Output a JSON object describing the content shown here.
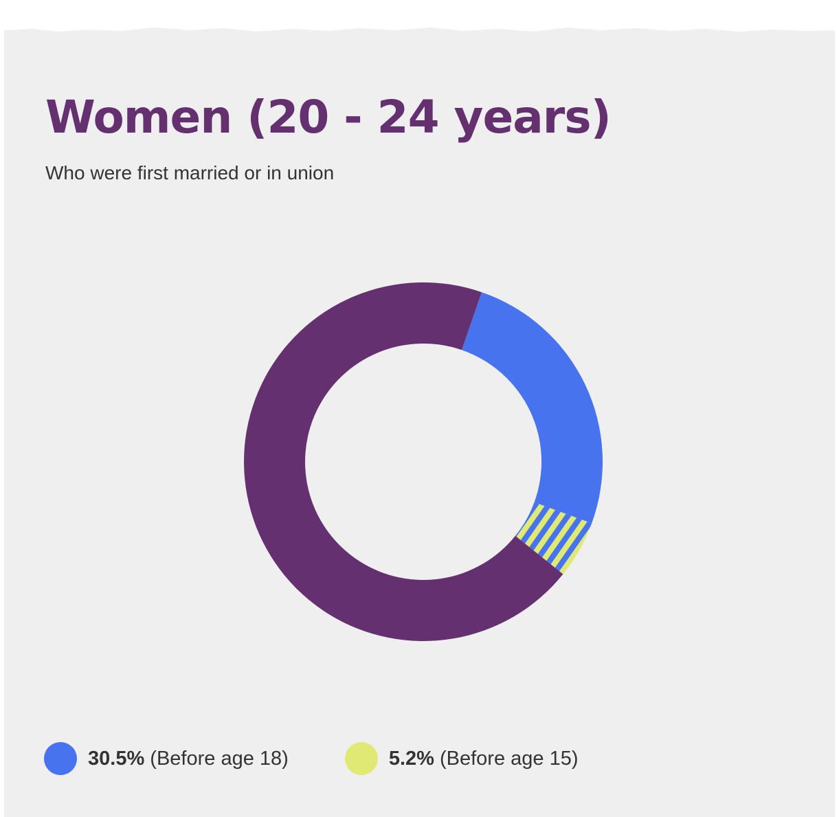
{
  "header": {
    "title": "Women (20 - 24 years)",
    "subtitle": "Who were first married or in union"
  },
  "colors": {
    "background": "#f0eff0",
    "remainder": "#64306f",
    "before_18": "#4773ee",
    "before_15": "#e0e973"
  },
  "chart_data": {
    "type": "pie",
    "title": "Women (20 - 24 years)",
    "subtitle": "Who were first married or in union",
    "donut": true,
    "slices": [
      {
        "label": "(Before age 18)",
        "value": 30.5,
        "value_label": "30.5%",
        "color": "#4773ee"
      },
      {
        "label": "(Before age 15)",
        "value": 5.2,
        "value_label": "5.2%",
        "color": "#e0e973",
        "pattern": "striped over before_18"
      }
    ],
    "remainder_color": "#64306f",
    "legend_position": "bottom-left"
  },
  "legend": [
    {
      "value": "30.5%",
      "label": "(Before age 18)"
    },
    {
      "value": "5.2%",
      "label": "(Before age 15)"
    }
  ]
}
